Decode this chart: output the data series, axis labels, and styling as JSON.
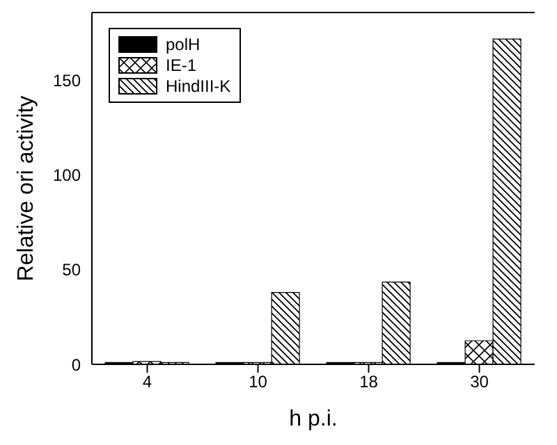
{
  "chart_data": {
    "type": "bar",
    "xlabel": "h p.i.",
    "ylabel": "Relative ori activity",
    "categories": [
      "4",
      "10",
      "18",
      "30"
    ],
    "series": [
      {
        "name": "polH",
        "color": "#000000",
        "values": [
          1,
          1,
          1,
          1
        ]
      },
      {
        "name": "IE-1",
        "color": "#000000",
        "values": [
          1.5,
          1,
          1,
          12.5
        ]
      },
      {
        "name": "HindIII-K",
        "color": "#000000",
        "values": [
          1,
          38,
          43.5,
          172
        ]
      }
    ],
    "ylim": [
      0,
      186
    ],
    "yticks": [
      0,
      50,
      100,
      150
    ],
    "grid": false,
    "legend": "top left"
  }
}
